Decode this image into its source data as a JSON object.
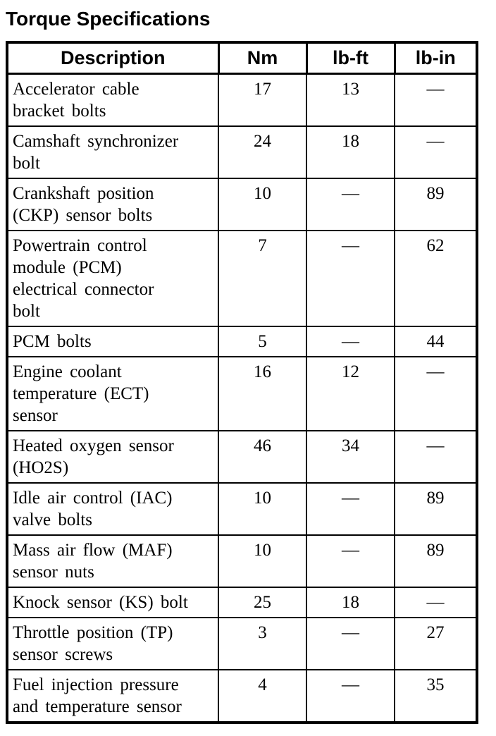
{
  "title": "Torque Specifications",
  "table": {
    "headers": [
      "Description",
      "Nm",
      "lb-ft",
      "lb-in"
    ],
    "rows": [
      {
        "description": "Accelerator cable\nbracket bolts",
        "nm": "17",
        "lbft": "13",
        "lbin": "—"
      },
      {
        "description": "Camshaft synchronizer\nbolt",
        "nm": "24",
        "lbft": "18",
        "lbin": "—"
      },
      {
        "description": "Crankshaft position\n(CKP) sensor bolts",
        "nm": "10",
        "lbft": "—",
        "lbin": "89"
      },
      {
        "description": "Powertrain control\nmodule (PCM)\nelectrical connector\nbolt",
        "nm": "7",
        "lbft": "—",
        "lbin": "62"
      },
      {
        "description": "PCM bolts",
        "nm": "5",
        "lbft": "—",
        "lbin": "44"
      },
      {
        "description": "Engine coolant\ntemperature (ECT)\nsensor",
        "nm": "16",
        "lbft": "12",
        "lbin": "—"
      },
      {
        "description": "Heated oxygen sensor\n(HO2S)",
        "nm": "46",
        "lbft": "34",
        "lbin": "—"
      },
      {
        "description": "Idle air control (IAC)\nvalve bolts",
        "nm": "10",
        "lbft": "—",
        "lbin": "89"
      },
      {
        "description": "Mass air flow (MAF)\nsensor nuts",
        "nm": "10",
        "lbft": "—",
        "lbin": "89"
      },
      {
        "description": "Knock sensor (KS) bolt",
        "nm": "25",
        "lbft": "18",
        "lbin": "—"
      },
      {
        "description": "Throttle position (TP)\nsensor screws",
        "nm": "3",
        "lbft": "—",
        "lbin": "27"
      },
      {
        "description": "Fuel injection pressure\nand temperature sensor",
        "nm": "4",
        "lbft": "—",
        "lbin": "35"
      }
    ]
  }
}
